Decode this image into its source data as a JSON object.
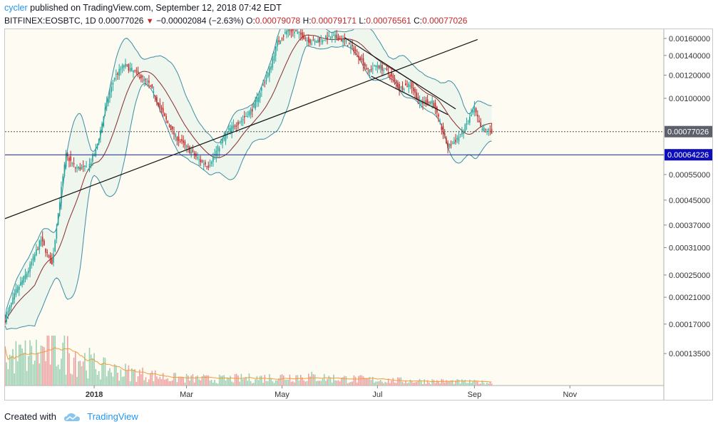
{
  "header": {
    "author": "cycler",
    "published_text": " published on TradingView.com, September 12, 2018 07:42 EDT",
    "symbol": "BITFINEX:EOSBTC, 1D",
    "last": "0.00077026",
    "change": "−0.00002084 (−2.63%)",
    "o_label": "O:",
    "o_value": "0.00079078",
    "h_label": "H:",
    "h_value": "0.00079171",
    "l_label": "L:",
    "l_value": "0.00076561",
    "c_label": "C:",
    "c_value": "0.00077026"
  },
  "footer": {
    "created_with": "Created with",
    "brand": "TradingView"
  },
  "colors": {
    "up": "#26a69a",
    "down": "#c62828",
    "band_fill": "#eef6ee",
    "band_line": "#3b8ea5",
    "basis": "#8b2b2b",
    "volume_ma": "#f39c3c",
    "trendline": "#111111",
    "support_line": "#1a237e",
    "support_label_bg": "#0d0dbb",
    "price_label_bg": "#5d606b",
    "background": "#fdfbf2"
  },
  "chart_data": {
    "type": "candlestick",
    "symbol": "EOSBTC",
    "timeframe": "1D",
    "scale": "log",
    "xlim": [
      "2017-11-05",
      "2018-12-31"
    ],
    "ylim": [
      0.000105,
      0.00172
    ],
    "x_ticks": [
      {
        "date": "2018-01-01",
        "label": "2018"
      },
      {
        "date": "2018-03-01",
        "label": "Mar"
      },
      {
        "date": "2018-05-01",
        "label": "May"
      },
      {
        "date": "2018-07-01",
        "label": "Jul"
      },
      {
        "date": "2018-09-01",
        "label": "Sep"
      },
      {
        "date": "2018-11-01",
        "label": "Nov"
      }
    ],
    "y_ticks": [
      {
        "value": 0.0016,
        "label": "0.00160000"
      },
      {
        "value": 0.0014,
        "label": "0.00140000"
      },
      {
        "value": 0.0012,
        "label": "0.00120000"
      },
      {
        "value": 0.001,
        "label": "0.00100000"
      },
      {
        "value": 0.00055,
        "label": "0.00055000"
      },
      {
        "value": 0.00045,
        "label": "0.00045000"
      },
      {
        "value": 0.00037,
        "label": "0.00037000"
      },
      {
        "value": 0.00031,
        "label": "0.00031000"
      },
      {
        "value": 0.00025,
        "label": "0.00025000"
      },
      {
        "value": 0.00021,
        "label": "0.00021000"
      },
      {
        "value": 0.00017,
        "label": "0.00017000"
      },
      {
        "value": 0.000135,
        "label": "0.00013500"
      }
    ],
    "price_markers": [
      {
        "value": 0.00077026,
        "label": "0.00077026",
        "style": "dotted"
      },
      {
        "value": 0.00064226,
        "label": "0.00064226",
        "style": "solid"
      }
    ],
    "trendlines": [
      {
        "from": {
          "date": "2017-11-05",
          "price": 0.000389
        },
        "to": {
          "date": "2018-09-03",
          "price": 0.001587
        }
      },
      {
        "from": {
          "date": "2018-06-10",
          "price": 0.00161
        },
        "to": {
          "date": "2018-08-20",
          "price": 0.00092
        }
      },
      {
        "from": {
          "date": "2018-06-27",
          "price": 0.00119
        },
        "to": {
          "date": "2018-08-15",
          "price": 0.00088
        }
      }
    ],
    "price_anchors": [
      {
        "date": "2017-11-05",
        "price": 0.000175
      },
      {
        "date": "2017-11-12",
        "price": 0.00022
      },
      {
        "date": "2017-11-20",
        "price": 0.00026
      },
      {
        "date": "2017-11-28",
        "price": 0.00033
      },
      {
        "date": "2017-12-05",
        "price": 0.00027
      },
      {
        "date": "2017-12-10",
        "price": 0.00045
      },
      {
        "date": "2017-12-14",
        "price": 0.00064
      },
      {
        "date": "2017-12-20",
        "price": 0.00058
      },
      {
        "date": "2017-12-28",
        "price": 0.00058
      },
      {
        "date": "2018-01-02",
        "price": 0.00066
      },
      {
        "date": "2018-01-08",
        "price": 0.00092
      },
      {
        "date": "2018-01-14",
        "price": 0.00118
      },
      {
        "date": "2018-01-20",
        "price": 0.0013
      },
      {
        "date": "2018-01-28",
        "price": 0.00122
      },
      {
        "date": "2018-02-05",
        "price": 0.00112
      },
      {
        "date": "2018-02-15",
        "price": 0.00086
      },
      {
        "date": "2018-02-22",
        "price": 0.00074
      },
      {
        "date": "2018-03-01",
        "price": 0.00068
      },
      {
        "date": "2018-03-10",
        "price": 0.00061
      },
      {
        "date": "2018-03-15",
        "price": 0.00059
      },
      {
        "date": "2018-03-20",
        "price": 0.00066
      },
      {
        "date": "2018-03-28",
        "price": 0.00078
      },
      {
        "date": "2018-04-05",
        "price": 0.00084
      },
      {
        "date": "2018-04-12",
        "price": 0.00092
      },
      {
        "date": "2018-04-18",
        "price": 0.00108
      },
      {
        "date": "2018-04-23",
        "price": 0.00125
      },
      {
        "date": "2018-04-28",
        "price": 0.00155
      },
      {
        "date": "2018-05-05",
        "price": 0.00172
      },
      {
        "date": "2018-05-12",
        "price": 0.00166
      },
      {
        "date": "2018-05-20",
        "price": 0.00155
      },
      {
        "date": "2018-05-28",
        "price": 0.0016
      },
      {
        "date": "2018-06-04",
        "price": 0.00162
      },
      {
        "date": "2018-06-10",
        "price": 0.00157
      },
      {
        "date": "2018-06-18",
        "price": 0.00143
      },
      {
        "date": "2018-06-25",
        "price": 0.00124
      },
      {
        "date": "2018-07-01",
        "price": 0.0013
      },
      {
        "date": "2018-07-08",
        "price": 0.00122
      },
      {
        "date": "2018-07-15",
        "price": 0.00108
      },
      {
        "date": "2018-07-22",
        "price": 0.00112
      },
      {
        "date": "2018-07-28",
        "price": 0.00096
      },
      {
        "date": "2018-08-05",
        "price": 0.00098
      },
      {
        "date": "2018-08-10",
        "price": 0.00082
      },
      {
        "date": "2018-08-15",
        "price": 0.00068
      },
      {
        "date": "2018-08-20",
        "price": 0.00072
      },
      {
        "date": "2018-08-25",
        "price": 0.00078
      },
      {
        "date": "2018-09-01",
        "price": 0.00092
      },
      {
        "date": "2018-09-05",
        "price": 0.00079
      },
      {
        "date": "2018-09-12",
        "price": 0.00077026
      }
    ],
    "indicators": [
      {
        "name": "bollinger_bands",
        "period": 20,
        "mult": 2
      },
      {
        "name": "basis_sma",
        "period": 20
      },
      {
        "name": "volume",
        "with_ma": true
      }
    ],
    "volume_anchors": [
      {
        "date": "2017-11-05",
        "value": 65
      },
      {
        "date": "2017-11-20",
        "value": 70
      },
      {
        "date": "2017-12-05",
        "value": 85
      },
      {
        "date": "2017-12-18",
        "value": 75
      },
      {
        "date": "2018-01-05",
        "value": 40
      },
      {
        "date": "2018-01-25",
        "value": 30
      },
      {
        "date": "2018-02-20",
        "value": 18
      },
      {
        "date": "2018-03-20",
        "value": 15
      },
      {
        "date": "2018-04-20",
        "value": 18
      },
      {
        "date": "2018-05-10",
        "value": 22
      },
      {
        "date": "2018-06-10",
        "value": 16
      },
      {
        "date": "2018-07-10",
        "value": 12
      },
      {
        "date": "2018-08-10",
        "value": 10
      },
      {
        "date": "2018-09-12",
        "value": 7
      }
    ],
    "volume_max": 100
  }
}
